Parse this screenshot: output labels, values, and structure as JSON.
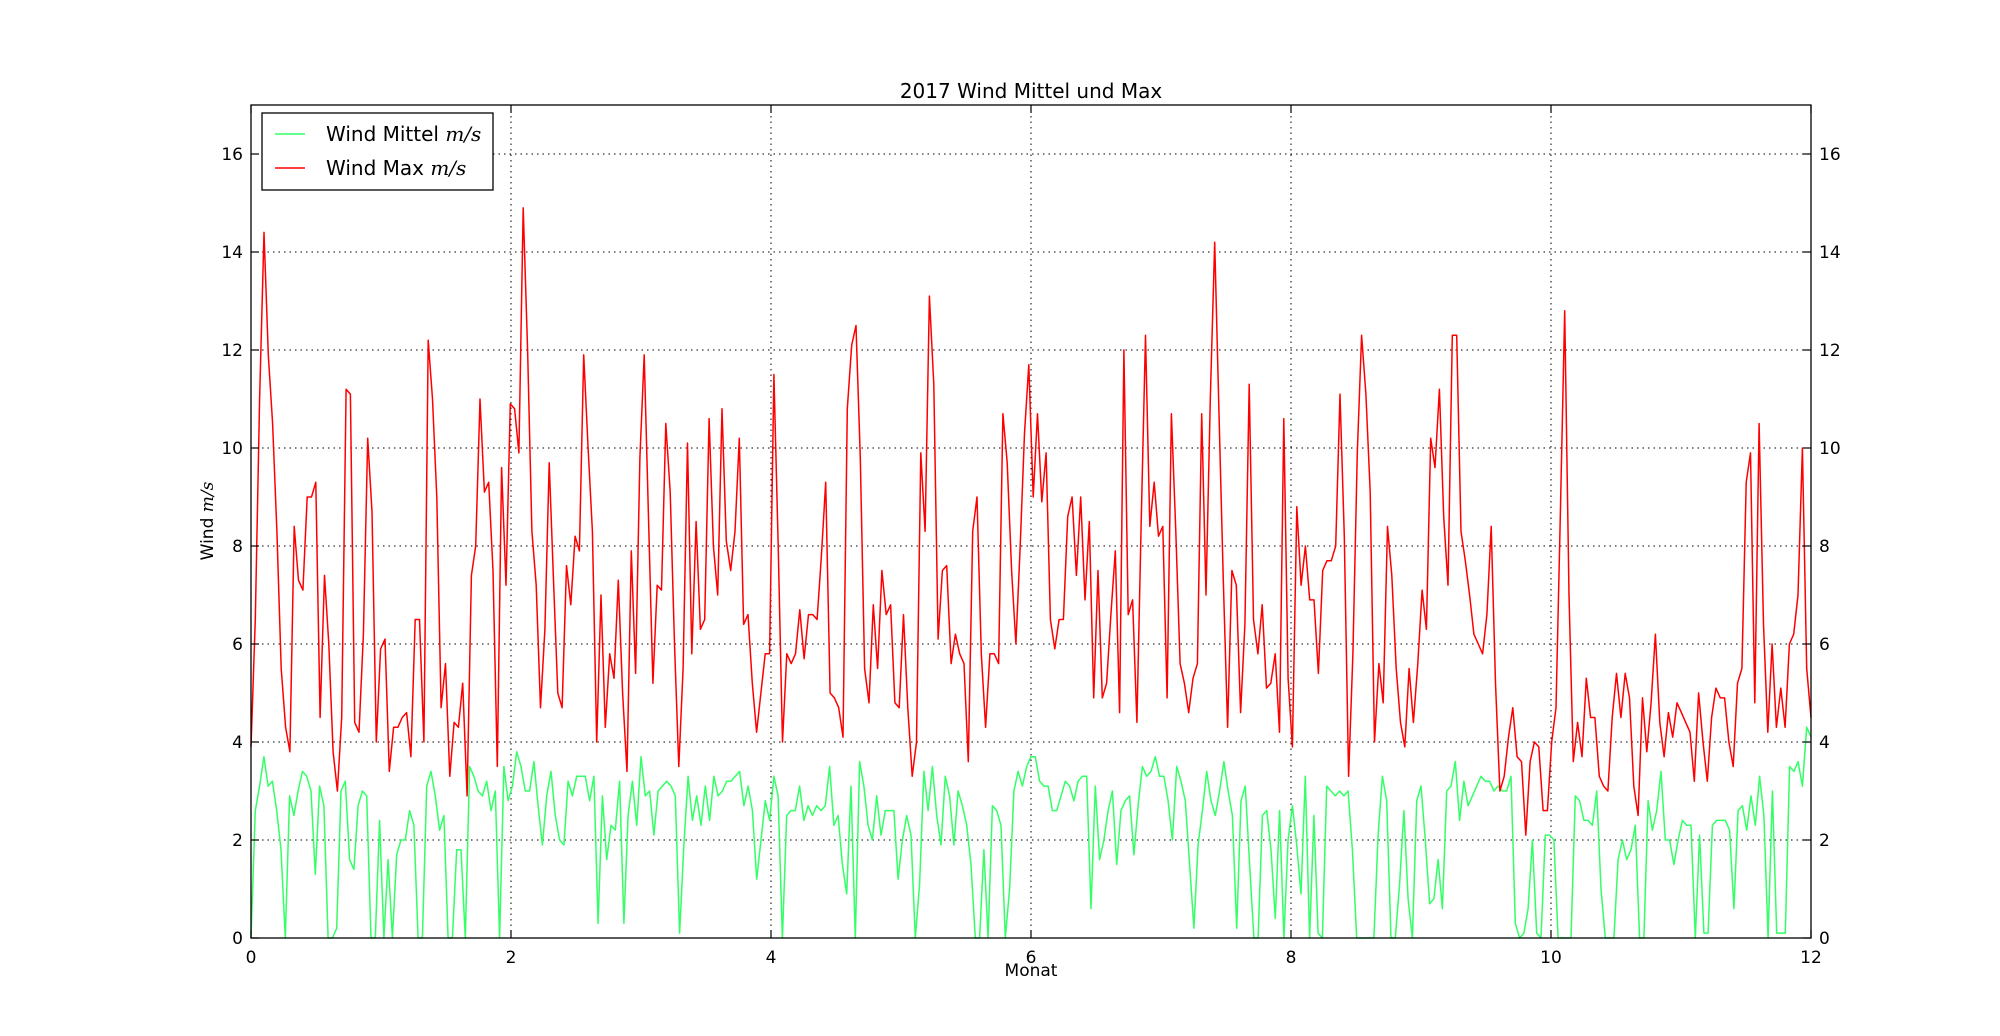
{
  "chart_data": {
    "type": "line",
    "title": "2017 Wind Mittel und Max",
    "xlabel": "Monat",
    "ylabel": "Wind",
    "ylabel_unit": "m/s",
    "xlim": [
      0,
      12
    ],
    "ylim": [
      0,
      17
    ],
    "xticks": [
      0,
      2,
      4,
      6,
      8,
      10,
      12
    ],
    "yticks": [
      0,
      2,
      4,
      6,
      8,
      10,
      12,
      14,
      16
    ],
    "grid": true,
    "legend": "top-left",
    "series": [
      {
        "name": "Wind Mittel",
        "unit": "m/s",
        "color": "#33ff66",
        "values": [
          0,
          2.6,
          3.1,
          3.7,
          3.1,
          3.2,
          2.6,
          1.8,
          0,
          2.9,
          2.5,
          3.0,
          3.4,
          3.3,
          3.0,
          1.3,
          3.1,
          2.7,
          0,
          0,
          0.2,
          3.0,
          3.2,
          1.6,
          1.4,
          2.7,
          3.0,
          2.9,
          0,
          0,
          2.4,
          0,
          1.6,
          0,
          1.7,
          2.0,
          2.0,
          2.6,
          2.3,
          0,
          0,
          3.1,
          3.4,
          2.9,
          2.2,
          2.5,
          0,
          0,
          1.8,
          1.8,
          0,
          3.5,
          3.3,
          3.0,
          2.9,
          3.2,
          2.6,
          3.0,
          0,
          3.5,
          2.8,
          3.1,
          3.8,
          3.5,
          3.0,
          3.0,
          3.6,
          2.7,
          1.9,
          2.9,
          3.4,
          2.5,
          2.0,
          1.9,
          3.2,
          2.9,
          3.3,
          3.3,
          3.3,
          2.8,
          3.3,
          0.3,
          2.9,
          1.6,
          2.3,
          2.2,
          3.2,
          0.3,
          2.5,
          3.2,
          2.3,
          3.7,
          2.9,
          3.0,
          2.1,
          3.0,
          3.1,
          3.2,
          3.1,
          2.9,
          0.1,
          1.9,
          3.3,
          2.4,
          2.9,
          2.3,
          3.1,
          2.4,
          3.3,
          2.9,
          3.0,
          3.2,
          3.2,
          3.3,
          3.4,
          2.7,
          3.1,
          2.6,
          1.2,
          2.0,
          2.8,
          2.4,
          3.3,
          2.9,
          0,
          2.5,
          2.6,
          2.6,
          3.1,
          2.4,
          2.7,
          2.5,
          2.7,
          2.6,
          2.7,
          3.5,
          2.3,
          2.5,
          1.5,
          0.9,
          3.1,
          0,
          3.6,
          3.1,
          2.3,
          2.0,
          2.9,
          2.1,
          2.6,
          2.6,
          2.6,
          1.2,
          2.0,
          2.5,
          2.1,
          0,
          1.1,
          3.4,
          2.6,
          3.5,
          2.5,
          1.9,
          3.3,
          2.9,
          1.9,
          3.0,
          2.7,
          2.3,
          1.5,
          0,
          0,
          1.8,
          0,
          2.7,
          2.6,
          2.3,
          0,
          1.0,
          3.0,
          3.4,
          3.1,
          3.5,
          3.7,
          3.7,
          3.2,
          3.1,
          3.1,
          2.6,
          2.6,
          2.9,
          3.2,
          3.1,
          2.8,
          3.2,
          3.3,
          3.3,
          0.6,
          3.1,
          1.6,
          2.0,
          2.6,
          3.0,
          1.5,
          2.6,
          2.8,
          2.9,
          1.7,
          2.7,
          3.5,
          3.3,
          3.4,
          3.7,
          3.3,
          3.3,
          2.8,
          2.0,
          3.5,
          3.2,
          2.8,
          1.5,
          0.2,
          1.9,
          2.6,
          3.4,
          2.8,
          2.5,
          3.0,
          3.6,
          3.0,
          2.5,
          0.2,
          2.8,
          3.1,
          1.5,
          0,
          0,
          2.5,
          2.6,
          1.8,
          0.4,
          2.6,
          0,
          2.0,
          2.7,
          1.9,
          0.9,
          3.3,
          0,
          2.5,
          0.1,
          0,
          3.1,
          3.0,
          2.9,
          3.0,
          2.9,
          3.0,
          1.8,
          0,
          0,
          0,
          0,
          0,
          2.1,
          3.3,
          2.8,
          0,
          0,
          1.1,
          2.6,
          0.8,
          0,
          2.8,
          3.1,
          2.0,
          0.7,
          0.8,
          1.6,
          0.6,
          3.0,
          3.1,
          3.6,
          2.4,
          3.2,
          2.7,
          2.9,
          3.1,
          3.3,
          3.2,
          3.2,
          3.0,
          3.1,
          3.0,
          3.0,
          3.3,
          0.3,
          0,
          0.1,
          0.6,
          2.0,
          0.1,
          0,
          2.1,
          2.1,
          2.0,
          0,
          0,
          0,
          0,
          2.9,
          2.8,
          2.4,
          2.4,
          2.3,
          3.0,
          1.0,
          0,
          0,
          0,
          1.6,
          2.0,
          1.6,
          1.8,
          2.3,
          0,
          0,
          2.8,
          2.2,
          2.6,
          3.4,
          2.0,
          2.0,
          1.5,
          2.0,
          2.4,
          2.3,
          2.3,
          0,
          2.1,
          0.1,
          0.1,
          2.3,
          2.4,
          2.4,
          2.4,
          2.2,
          0.6,
          2.6,
          2.7,
          2.2,
          2.9,
          2.3,
          3.3,
          2.5,
          0,
          3.0,
          0.1,
          0.1,
          0.1,
          3.5,
          3.4,
          3.6,
          3.1,
          4.3,
          4.1
        ]
      },
      {
        "name": "Wind Max",
        "unit": "m/s",
        "color": "#ff0000",
        "values": [
          3.9,
          6.5,
          11.0,
          14.4,
          11.9,
          10.5,
          8.3,
          5.5,
          4.3,
          3.8,
          8.4,
          7.3,
          7.1,
          9.0,
          9.0,
          9.3,
          4.5,
          7.4,
          6.0,
          3.8,
          3.0,
          4.5,
          11.2,
          11.1,
          4.4,
          4.2,
          6.2,
          10.2,
          8.7,
          4.0,
          5.9,
          6.1,
          3.4,
          4.3,
          4.3,
          4.5,
          4.6,
          3.7,
          6.5,
          6.5,
          4.0,
          12.2,
          11.0,
          9.0,
          4.7,
          5.6,
          3.3,
          4.4,
          4.3,
          5.2,
          2.9,
          7.4,
          8.0,
          11.0,
          9.1,
          9.3,
          7.5,
          3.5,
          9.6,
          7.2,
          10.9,
          10.8,
          9.9,
          14.9,
          12.0,
          8.3,
          7.2,
          4.7,
          6.3,
          9.7,
          7.3,
          5.0,
          4.7,
          7.6,
          6.8,
          8.2,
          7.9,
          11.9,
          10.0,
          8.3,
          4.0,
          7.0,
          4.3,
          5.8,
          5.3,
          7.3,
          5.0,
          3.4,
          7.9,
          5.4,
          9.8,
          11.9,
          8.5,
          5.2,
          7.2,
          7.1,
          10.5,
          9.1,
          6.0,
          3.5,
          5.5,
          10.1,
          5.8,
          8.5,
          6.3,
          6.5,
          10.6,
          8.0,
          7.0,
          10.8,
          8.1,
          7.5,
          8.3,
          10.2,
          6.4,
          6.6,
          5.2,
          4.2,
          5.0,
          5.8,
          5.8,
          11.5,
          8.0,
          4.0,
          5.8,
          5.6,
          5.8,
          6.7,
          5.7,
          6.6,
          6.6,
          6.5,
          7.8,
          9.3,
          5.0,
          4.9,
          4.7,
          4.1,
          10.8,
          12.1,
          12.5,
          9.8,
          5.5,
          4.8,
          6.8,
          5.5,
          7.5,
          6.6,
          6.8,
          4.8,
          4.7,
          6.6,
          4.7,
          3.3,
          4.0,
          9.9,
          8.3,
          13.1,
          11.3,
          6.1,
          7.5,
          7.6,
          5.6,
          6.2,
          5.8,
          5.6,
          3.6,
          8.3,
          9.0,
          5.8,
          4.3,
          5.8,
          5.8,
          5.6,
          10.7,
          9.7,
          7.5,
          6.0,
          8.0,
          10.3,
          11.7,
          9.0,
          10.7,
          8.9,
          9.9,
          6.5,
          5.9,
          6.5,
          6.5,
          8.6,
          9.0,
          7.4,
          9.0,
          6.9,
          8.5,
          4.9,
          7.5,
          4.9,
          5.2,
          6.6,
          7.9,
          4.6,
          12.0,
          6.6,
          6.9,
          4.4,
          8.5,
          12.3,
          8.4,
          9.3,
          8.2,
          8.4,
          4.9,
          10.7,
          8.3,
          5.6,
          5.2,
          4.6,
          5.3,
          5.6,
          10.7,
          7.0,
          11.0,
          14.2,
          10.7,
          7.3,
          4.3,
          7.5,
          7.2,
          4.6,
          6.4,
          11.3,
          6.5,
          5.8,
          6.8,
          5.1,
          5.2,
          5.8,
          4.2,
          10.6,
          5.3,
          3.9,
          8.8,
          7.2,
          8.0,
          6.9,
          6.9,
          5.4,
          7.5,
          7.7,
          7.7,
          8.0,
          11.1,
          8.2,
          3.3,
          5.8,
          9.9,
          12.3,
          11.1,
          9.1,
          4.0,
          5.6,
          4.8,
          8.4,
          7.4,
          5.5,
          4.4,
          3.9,
          5.5,
          4.4,
          5.6,
          7.1,
          6.3,
          10.2,
          9.6,
          11.2,
          8.6,
          7.2,
          12.3,
          12.3,
          8.3,
          7.7,
          7.0,
          6.2,
          6.0,
          5.8,
          6.6,
          8.4,
          5.2,
          3.0,
          3.3,
          4.1,
          4.7,
          3.7,
          3.6,
          2.1,
          3.6,
          4.0,
          3.9,
          2.6,
          2.6,
          4.0,
          4.7,
          8.7,
          12.8,
          7.0,
          3.6,
          4.4,
          3.7,
          5.3,
          4.5,
          4.5,
          3.3,
          3.1,
          3.0,
          4.5,
          5.4,
          4.5,
          5.4,
          4.9,
          3.1,
          2.5,
          4.9,
          3.8,
          4.8,
          6.2,
          4.4,
          3.7,
          4.6,
          4.1,
          4.8,
          4.6,
          4.4,
          4.2,
          3.2,
          5.0,
          4.0,
          3.2,
          4.5,
          5.1,
          4.9,
          4.9,
          4.0,
          3.5,
          5.2,
          5.5,
          9.3,
          9.9,
          4.8,
          10.5,
          6.4,
          4.2,
          6.0,
          4.3,
          5.1,
          4.3,
          6.0,
          6.2,
          7.0,
          10.0,
          5.5,
          4.5
        ]
      }
    ]
  }
}
